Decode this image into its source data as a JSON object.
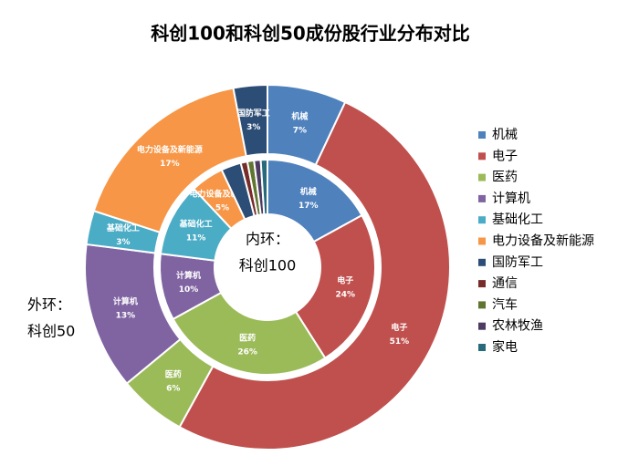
{
  "chart_data": {
    "type": "donut",
    "title": "科创100和科创50成份股行业分布对比",
    "categories": [
      "机械",
      "电子",
      "医药",
      "计算机",
      "基础化工",
      "电力设备及新能源",
      "国防军工",
      "通信",
      "汽车",
      "农林牧渔",
      "家电"
    ],
    "colors": [
      "#4f81bd",
      "#c0504d",
      "#9bbb59",
      "#8064a2",
      "#4bacc6",
      "#f79646",
      "#2c4d75",
      "#772c2a",
      "#5f7530",
      "#4d3b62",
      "#276a7c"
    ],
    "series": [
      {
        "name": "科创50",
        "ring": "outer",
        "ring_label": "外环：",
        "values": [
          7,
          51,
          6,
          13,
          3,
          17,
          3,
          0,
          0,
          0,
          0
        ],
        "value_labels": [
          "7%",
          "51%",
          "6%",
          "13%",
          "3%",
          "17%",
          "3%",
          null,
          null,
          null,
          null
        ]
      },
      {
        "name": "科创100",
        "ring": "inner",
        "ring_label": "内环：",
        "values": [
          17,
          24,
          26,
          10,
          11,
          5,
          3,
          1,
          1,
          1,
          1
        ],
        "value_labels": [
          "17%",
          "24%",
          "26%",
          "10%",
          "11%",
          "5%",
          null,
          null,
          null,
          null,
          null
        ]
      }
    ],
    "legend": "right"
  }
}
